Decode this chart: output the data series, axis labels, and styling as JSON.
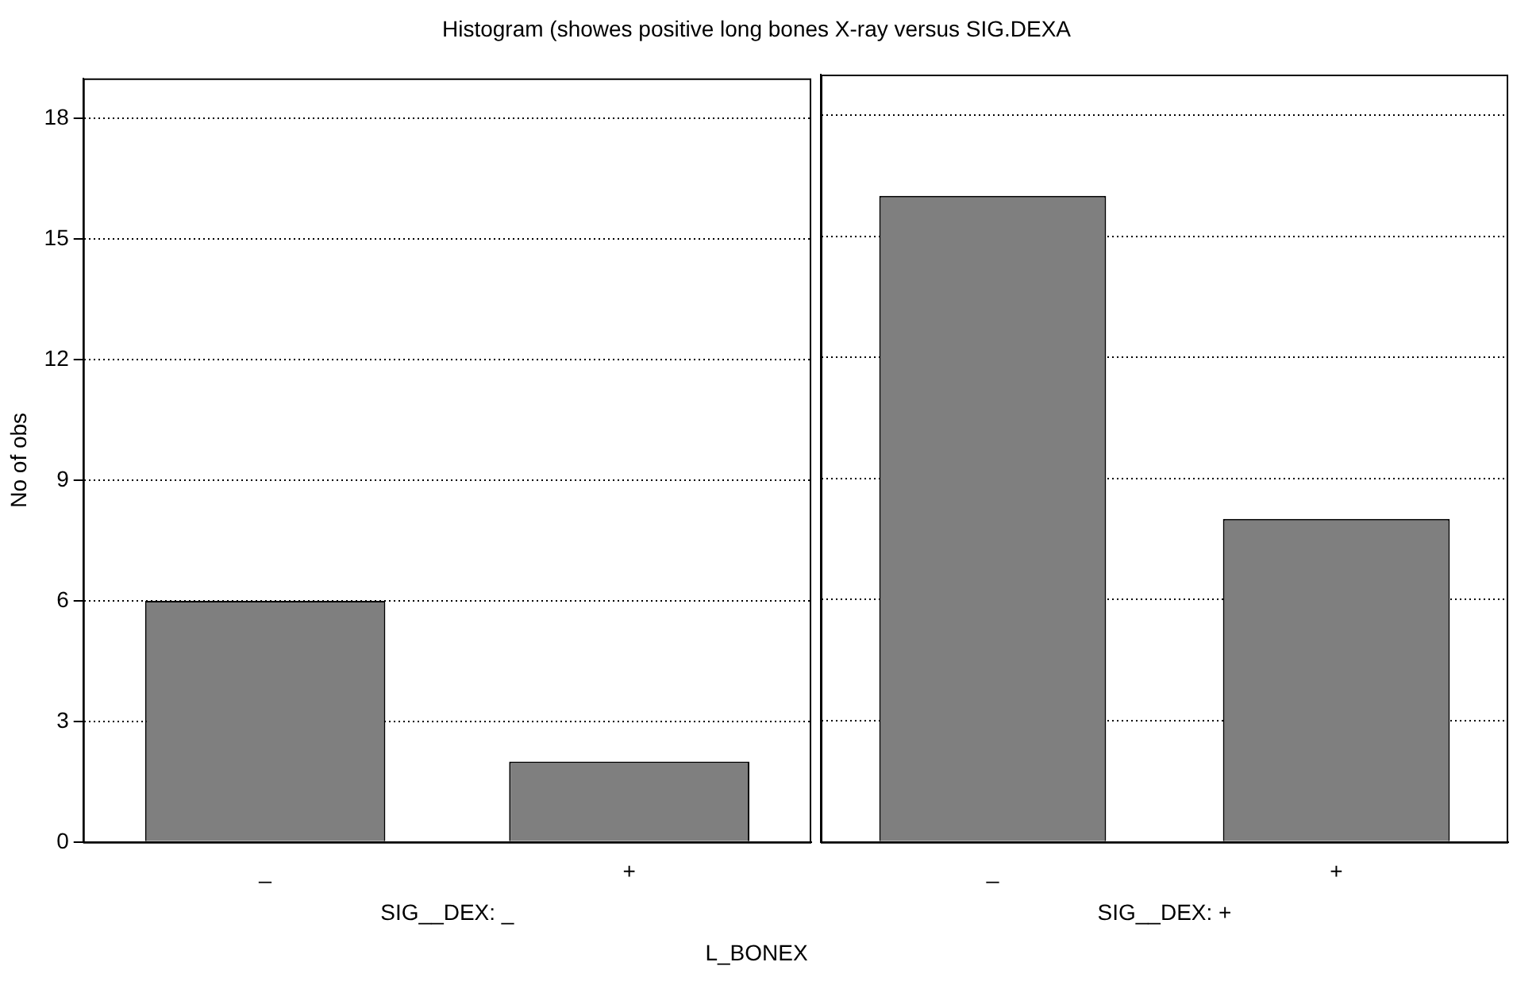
{
  "chart_data": [
    {
      "type": "bar",
      "title": "Histogram (showes positive long bones X-ray versus SIG.DEXA",
      "categories": [
        "_",
        "+"
      ],
      "values": [
        6,
        2
      ],
      "color": "#7f7f7f",
      "ylabel": "No of obs",
      "xlabel": "SIG__DEX: _",
      "ylim": [
        0,
        19
      ],
      "yticks": [
        0,
        3,
        6,
        9,
        12,
        15,
        18
      ],
      "grid": "y",
      "annotations": [
        "L_BONEX"
      ]
    },
    {
      "type": "bar",
      "categories": [
        "_",
        "+"
      ],
      "values": [
        16,
        8
      ],
      "color": "#7f7f7f",
      "xlabel": "SIG__DEX: +",
      "ylim": [
        0,
        19
      ],
      "yticks": [
        0,
        3,
        6,
        9,
        12,
        15,
        18
      ],
      "grid": "y",
      "tick_labels": "x"
    }
  ]
}
